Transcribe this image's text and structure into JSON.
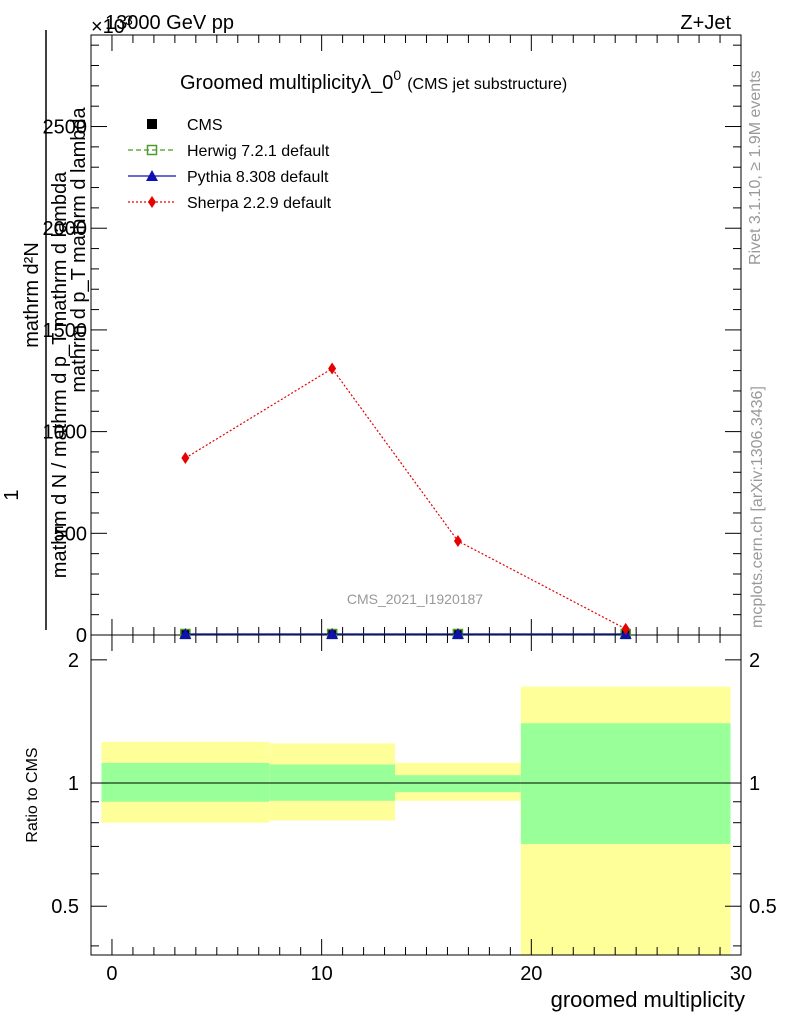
{
  "header": {
    "energy_label": "13000 GeV pp",
    "process_label": "Z+Jet",
    "exponent_label": "×10",
    "exponent_power": "3"
  },
  "side_labels": {
    "rivet": "Rivet 3.1.10, ≥ 1.9M events",
    "mcplots": "mcplots.cern.ch [arXiv:1306.3436]"
  },
  "watermark": "CMS_2021_I1920187",
  "chart_data": [
    {
      "type": "scatter",
      "panel": "main",
      "title": "Groomed multiplicityλ_0",
      "title_sup": "0",
      "title_suffix": "(CMS jet substructure)",
      "ylabel_numerator": "mathrm d²N",
      "ylabel_denominator": "mathrm d p_T mathrm d lambda",
      "ylabel_numerator_full": "mathrm d N / mathrm d p_T mathrm d lambda",
      "ylabel_prefix": "1",
      "yticks": [
        0,
        500,
        1000,
        1500,
        2000,
        2500
      ],
      "yticklabels": [
        "0",
        "500",
        "1000",
        "1500",
        "2000",
        "2500"
      ],
      "ylim": [
        0,
        2950
      ],
      "xlim": [
        -1,
        30
      ],
      "legend_position": "top-left",
      "series": [
        {
          "name": "CMS",
          "color": "#000000",
          "marker": "square",
          "x": [
            3.5,
            10.5,
            16.5,
            24.5
          ],
          "y": [
            2,
            2,
            2,
            2
          ]
        },
        {
          "name": "Herwig 7.2.1 default",
          "color": "#4c9a2a",
          "marker": "open-square",
          "line": "dashed",
          "x": [
            3.5,
            10.5,
            16.5,
            24.5
          ],
          "y": [
            2,
            2,
            2,
            2
          ]
        },
        {
          "name": "Pythia 8.308 default",
          "color": "#1010b0",
          "marker": "triangle",
          "line": "solid",
          "x": [
            3.5,
            10.5,
            16.5,
            24.5
          ],
          "y": [
            2,
            2,
            2,
            2
          ]
        },
        {
          "name": "Sherpa 2.2.9 default",
          "color": "#e60000",
          "marker": "diamond",
          "line": "dotted",
          "x": [
            3.5,
            10.5,
            16.5,
            24.5
          ],
          "y": [
            870,
            1310,
            462,
            30
          ]
        }
      ]
    },
    {
      "type": "area",
      "panel": "ratio",
      "ylabel": "Ratio to CMS",
      "xlabel": "groomed multiplicity",
      "xticks": [
        0,
        10,
        20,
        30
      ],
      "xticklabels": [
        "0",
        "10",
        "20",
        "30"
      ],
      "yticks": [
        0.5,
        1,
        2
      ],
      "yticklabels": [
        "0.5",
        "1",
        "2"
      ],
      "ylim": [
        0.38,
        2.3
      ],
      "log_scale": true,
      "xlim": [
        -1,
        30
      ],
      "bands": [
        {
          "x0": -0.5,
          "x1": 7.5,
          "stat_lo": 0.9,
          "stat_hi": 1.12,
          "tot_lo": 0.8,
          "tot_hi": 1.26
        },
        {
          "x0": 7.5,
          "x1": 13.5,
          "stat_lo": 0.905,
          "stat_hi": 1.11,
          "tot_lo": 0.81,
          "tot_hi": 1.25
        },
        {
          "x0": 13.5,
          "x1": 19.5,
          "stat_lo": 0.95,
          "stat_hi": 1.045,
          "tot_lo": 0.905,
          "tot_hi": 1.12
        },
        {
          "x0": 19.5,
          "x1": 29.5,
          "stat_lo": 0.71,
          "stat_hi": 1.4,
          "tot_lo": 0.38,
          "tot_hi": 1.72
        }
      ],
      "colors": {
        "stat": "#99ff99",
        "total": "#ffff99"
      }
    }
  ]
}
